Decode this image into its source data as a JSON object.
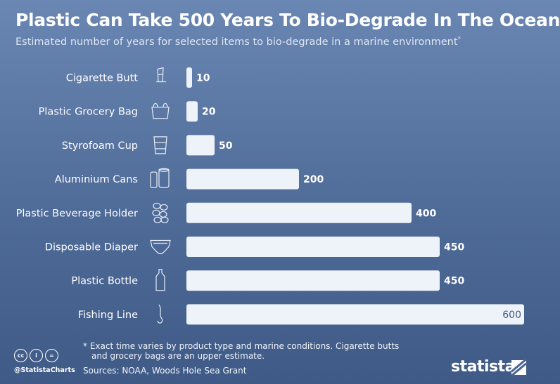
{
  "chart_data": {
    "type": "bar",
    "orientation": "horizontal",
    "title": "Plastic Can Take 500 Years To Bio-Degrade In The Ocean",
    "subtitle": "Estimated number of years for selected items to bio-degrade in a marine environment",
    "subtitle_mark": "*",
    "categories": [
      "Cigarette Butt",
      "Plastic Grocery Bag",
      "Styrofoam Cup",
      "Aluminium Cans",
      "Plastic Beverage Holder",
      "Disposable Diaper",
      "Plastic Bottle",
      "Fishing Line"
    ],
    "values": [
      10,
      20,
      50,
      200,
      400,
      450,
      450,
      600
    ],
    "value_labels": [
      "10",
      "20",
      "50",
      "200",
      "400",
      "450",
      "450",
      "600"
    ],
    "icons": [
      "cigarette-icon",
      "grocery-bag-icon",
      "cup-icon",
      "cans-icon",
      "beverage-holder-icon",
      "diaper-icon",
      "bottle-icon",
      "fishing-line-icon"
    ],
    "xlim": [
      0,
      600
    ],
    "grid": false,
    "legend": "none",
    "bar_color": "#eef2f9"
  },
  "footnote": {
    "line1": "* Exact time varies by product type and marine conditions. Cigarette butts",
    "line2": "and grocery bags are an upper estimate."
  },
  "sources": "Sources: NOAA, Woods Hole Sea Grant",
  "footer": {
    "handle": "@StatistaCharts",
    "brand": "statista",
    "cc": "cc",
    "by": "i",
    "nd": "="
  }
}
